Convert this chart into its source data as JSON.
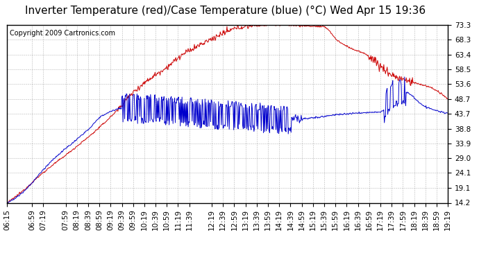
{
  "title": "Inverter Temperature (red)/Case Temperature (blue) (°C) Wed Apr 15 19:36",
  "copyright": "Copyright 2009 Cartronics.com",
  "yticks": [
    14.2,
    19.1,
    24.1,
    29.0,
    33.9,
    38.8,
    43.7,
    48.7,
    53.6,
    58.5,
    63.4,
    68.3,
    73.3
  ],
  "ylim": [
    14.2,
    73.3
  ],
  "red_color": "#cc0000",
  "blue_color": "#0000cc",
  "background_color": "#ffffff",
  "grid_color": "#888888",
  "title_fontsize": 11,
  "copyright_fontsize": 7,
  "tick_fontsize": 7.5,
  "xtick_labels": [
    "06:15",
    "06:59",
    "07:19",
    "07:59",
    "08:19",
    "08:39",
    "08:59",
    "09:19",
    "09:39",
    "09:59",
    "10:19",
    "10:39",
    "10:59",
    "11:19",
    "11:39",
    "12:19",
    "12:39",
    "12:59",
    "13:19",
    "13:39",
    "13:59",
    "14:19",
    "14:39",
    "14:59",
    "15:19",
    "15:39",
    "15:59",
    "16:19",
    "16:39",
    "16:59",
    "17:19",
    "17:39",
    "17:59",
    "18:19",
    "18:39",
    "18:59",
    "19:19"
  ]
}
